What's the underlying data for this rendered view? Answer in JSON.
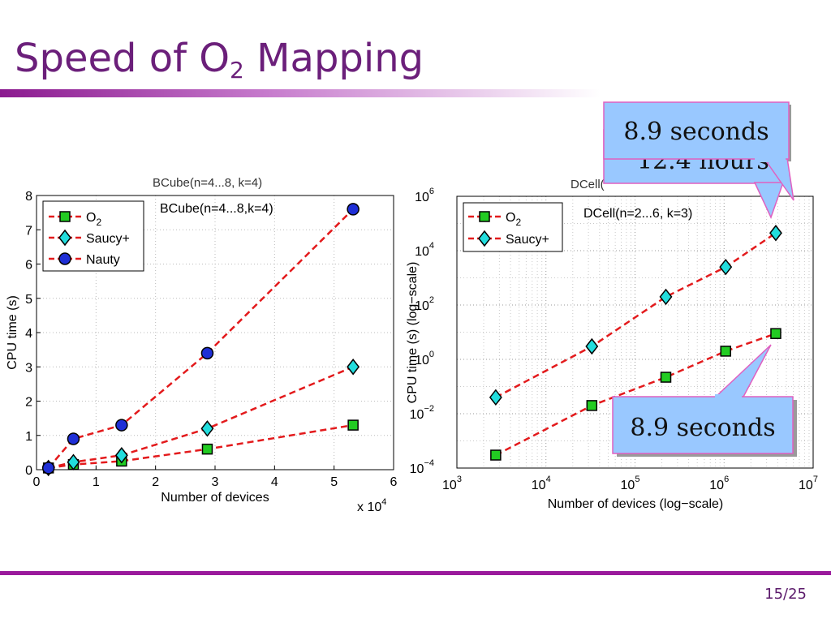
{
  "slide": {
    "title_prefix": "Speed of O",
    "title_sub": "2",
    "title_suffix": " Mapping",
    "page_number": "15/25",
    "accent_color": "#6b1f7a",
    "rule_color": "#9a1a9c"
  },
  "callouts": [
    {
      "text": "8.9 seconds",
      "hidden_text": "12.4 hours",
      "fill": "#99c8ff",
      "stroke": "#e060c0"
    },
    {
      "text": "8.9 seconds",
      "fill": "#99c8ff",
      "stroke": "#e060c0"
    }
  ],
  "chart_data": [
    {
      "type": "line",
      "title": "BCube(n=4...8,k=4)",
      "title_faint": "BCube(n=4...8, k=4)",
      "xlabel": "Number of devices",
      "ylabel": "CPU time (s)",
      "x_multiplier_base": "x 10",
      "x_multiplier_exp": "4",
      "xlim": [
        0,
        6
      ],
      "ylim": [
        0,
        8
      ],
      "xticks": [
        "0",
        "1",
        "2",
        "3",
        "4",
        "5",
        "6"
      ],
      "yticks": [
        "0",
        "1",
        "2",
        "3",
        "4",
        "5",
        "6",
        "7",
        "8"
      ],
      "grid": true,
      "legend_position": "top-left",
      "x": [
        0.2,
        0.62,
        1.43,
        2.87,
        5.32
      ],
      "series": [
        {
          "name": "O",
          "name_sub": "2",
          "marker": "square",
          "marker_color": "#22cc22",
          "line_color": "#e31a1c",
          "values": [
            0.05,
            0.15,
            0.25,
            0.6,
            1.3
          ]
        },
        {
          "name": "Saucy+",
          "marker": "diamond",
          "marker_color": "#22dddd",
          "line_color": "#e31a1c",
          "values": [
            0.05,
            0.22,
            0.42,
            1.2,
            3.0
          ]
        },
        {
          "name": "Nauty",
          "marker": "circle",
          "marker_color": "#1f2fd6",
          "line_color": "#e31a1c",
          "values": [
            0.05,
            0.9,
            1.3,
            3.4,
            7.6
          ]
        }
      ]
    },
    {
      "type": "line",
      "title": "DCell(n=2...6, k=3)",
      "title_faint": "DCell(",
      "xlabel": "Number of devices (log−scale)",
      "ylabel": "CPU time (s) (log−scale)",
      "xscale": "log",
      "yscale": "log",
      "xlim": [
        1000,
        10000000
      ],
      "ylim": [
        0.0001,
        1000000
      ],
      "xtick_base": "10",
      "xtick_exps": [
        "3",
        "4",
        "5",
        "6",
        "7"
      ],
      "ytick_base": "10",
      "ytick_exps": [
        "−4",
        "−2",
        "0",
        "2",
        "4",
        "6"
      ],
      "grid": true,
      "legend_position": "top-left",
      "x": [
        2730,
        32760,
        221970,
        1042530,
        3806370
      ],
      "series": [
        {
          "name": "O",
          "name_sub": "2",
          "marker": "square",
          "marker_color": "#22cc22",
          "line_color": "#e31a1c",
          "values": [
            0.0003,
            0.02,
            0.22,
            2.0,
            8.9
          ]
        },
        {
          "name": "Saucy+",
          "marker": "diamond",
          "marker_color": "#22dddd",
          "line_color": "#e31a1c",
          "values": [
            0.04,
            3.0,
            200,
            2500,
            44640
          ]
        }
      ]
    }
  ]
}
